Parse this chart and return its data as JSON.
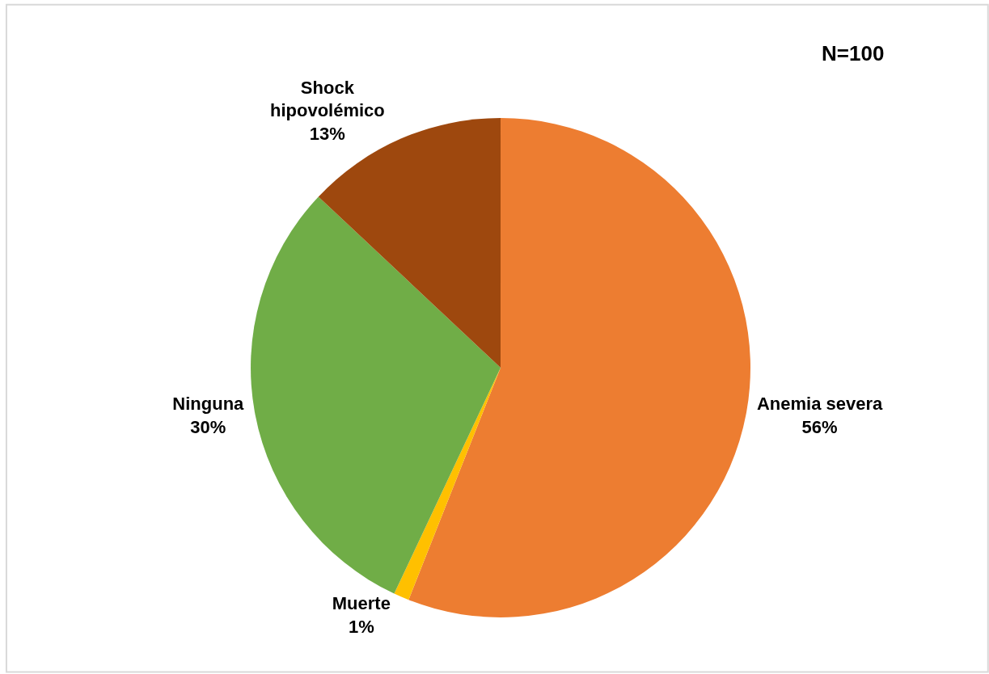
{
  "chart_data": {
    "type": "pie",
    "categories": [
      "Anemia severa",
      "Muerte",
      "Ninguna",
      "Shock hipovolémico"
    ],
    "values": [
      56,
      1,
      30,
      13
    ],
    "colors": [
      "#ed7d31",
      "#ffc000",
      "#70ad47",
      "#9e480e"
    ],
    "value_labels": [
      "56%",
      "1%",
      "30%",
      "13%"
    ],
    "annotations": [
      "N=100"
    ]
  }
}
